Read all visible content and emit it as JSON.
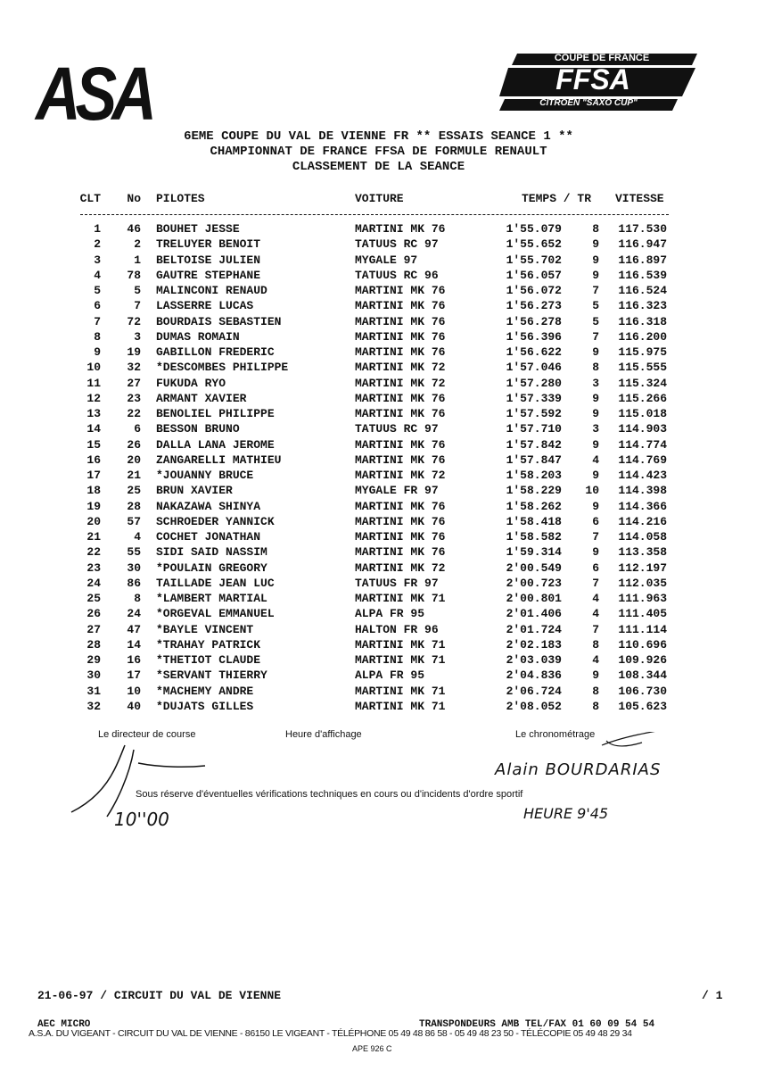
{
  "logos": {
    "asa": "ASA",
    "coupe": "COUPE DE FRANCE",
    "ffsa": "FFSA",
    "saxo": "CITROËN \"SAXO CUP\""
  },
  "header": {
    "lines": [
      "6EME COUPE DU VAL DE VIENNE FR ** ESSAIS SEANCE 1 **",
      "CHAMPIONNAT DE FRANCE FFSA DE FORMULE RENAULT",
      "CLASSEMENT DE LA SEANCE"
    ]
  },
  "table": {
    "columns": [
      "CLT",
      "No",
      "PILOTES",
      "VOITURE",
      "TEMPS / TR",
      "VITESSE"
    ],
    "rows": [
      [
        "1",
        "46",
        "BOUHET JESSE",
        "MARTINI MK 76",
        "1'55.079",
        "8",
        "117.530"
      ],
      [
        "2",
        "2",
        "TRELUYER BENOIT",
        "TATUUS RC 97",
        "1'55.652",
        "9",
        "116.947"
      ],
      [
        "3",
        "1",
        "BELTOISE JULIEN",
        "MYGALE 97",
        "1'55.702",
        "9",
        "116.897"
      ],
      [
        "4",
        "78",
        "GAUTRE STEPHANE",
        "TATUUS RC 96",
        "1'56.057",
        "9",
        "116.539"
      ],
      [
        "5",
        "5",
        "MALINCONI RENAUD",
        "MARTINI MK 76",
        "1'56.072",
        "7",
        "116.524"
      ],
      [
        "6",
        "7",
        "LASSERRE LUCAS",
        "MARTINI MK 76",
        "1'56.273",
        "5",
        "116.323"
      ],
      [
        "7",
        "72",
        "BOURDAIS SEBASTIEN",
        "MARTINI MK 76",
        "1'56.278",
        "5",
        "116.318"
      ],
      [
        "8",
        "3",
        "DUMAS ROMAIN",
        "MARTINI MK 76",
        "1'56.396",
        "7",
        "116.200"
      ],
      [
        "9",
        "19",
        "GABILLON FREDERIC",
        "MARTINI MK 76",
        "1'56.622",
        "9",
        "115.975"
      ],
      [
        "10",
        "32",
        "*DESCOMBES PHILIPPE",
        "MARTINI MK 72",
        "1'57.046",
        "8",
        "115.555"
      ],
      [
        "11",
        "27",
        "FUKUDA RYO",
        "MARTINI MK 72",
        "1'57.280",
        "3",
        "115.324"
      ],
      [
        "12",
        "23",
        "ARMANT XAVIER",
        "MARTINI MK 76",
        "1'57.339",
        "9",
        "115.266"
      ],
      [
        "13",
        "22",
        "BENOLIEL PHILIPPE",
        "MARTINI MK 76",
        "1'57.592",
        "9",
        "115.018"
      ],
      [
        "14",
        "6",
        "BESSON BRUNO",
        "TATUUS RC 97",
        "1'57.710",
        "3",
        "114.903"
      ],
      [
        "15",
        "26",
        "DALLA LANA JEROME",
        "MARTINI MK 76",
        "1'57.842",
        "9",
        "114.774"
      ],
      [
        "16",
        "20",
        "ZANGARELLI MATHIEU",
        "MARTINI MK 76",
        "1'57.847",
        "4",
        "114.769"
      ],
      [
        "17",
        "21",
        "*JOUANNY BRUCE",
        "MARTINI MK 72",
        "1'58.203",
        "9",
        "114.423"
      ],
      [
        "18",
        "25",
        "BRUN XAVIER",
        "MYGALE FR 97",
        "1'58.229",
        "10",
        "114.398"
      ],
      [
        "19",
        "28",
        "NAKAZAWA SHINYA",
        "MARTINI MK 76",
        "1'58.262",
        "9",
        "114.366"
      ],
      [
        "20",
        "57",
        "SCHROEDER YANNICK",
        "MARTINI MK 76",
        "1'58.418",
        "6",
        "114.216"
      ],
      [
        "21",
        "4",
        "COCHET JONATHAN",
        "MARTINI MK 76",
        "1'58.582",
        "7",
        "114.058"
      ],
      [
        "22",
        "55",
        "SIDI SAID NASSIM",
        "MARTINI MK 76",
        "1'59.314",
        "9",
        "113.358"
      ],
      [
        "23",
        "30",
        "*POULAIN GREGORY",
        "MARTINI MK 72",
        "2'00.549",
        "6",
        "112.197"
      ],
      [
        "24",
        "86",
        "TAILLADE JEAN LUC",
        "TATUUS FR 97",
        "2'00.723",
        "7",
        "112.035"
      ],
      [
        "25",
        "8",
        "*LAMBERT MARTIAL",
        "MARTINI MK 71",
        "2'00.801",
        "4",
        "111.963"
      ],
      [
        "26",
        "24",
        "*ORGEVAL EMMANUEL",
        "ALPA FR 95",
        "2'01.406",
        "4",
        "111.405"
      ],
      [
        "27",
        "47",
        "*BAYLE VINCENT",
        "HALTON FR 96",
        "2'01.724",
        "7",
        "111.114"
      ],
      [
        "28",
        "14",
        "*TRAHAY PATRICK",
        "MARTINI MK 71",
        "2'02.183",
        "8",
        "110.696"
      ],
      [
        "29",
        "16",
        "*THETIOT CLAUDE",
        "MARTINI MK 71",
        "2'03.039",
        "4",
        "109.926"
      ],
      [
        "30",
        "17",
        "*SERVANT THIERRY",
        "ALPA FR 95",
        "2'04.836",
        "9",
        "108.344"
      ],
      [
        "31",
        "10",
        "*MACHEMY ANDRE",
        "MARTINI MK 71",
        "2'06.724",
        "8",
        "106.730"
      ],
      [
        "32",
        "40",
        "*DUJATS GILLES",
        "MARTINI MK 71",
        "2'08.052",
        "8",
        "105.623"
      ]
    ]
  },
  "signatures": {
    "director": "Le directeur de course",
    "posting": "Heure d'affichage",
    "timing": "Le chronométrage",
    "timekeeper": "Alain BOURDARIAS",
    "notice": "Sous réserve d'éventuelles vérifications techniques en cours ou d'incidents d'ordre sportif",
    "hour": "HEURE 9'45",
    "posted": "10''00"
  },
  "footer": {
    "event": "21-06-97 / CIRCUIT DU VAL DE VIENNE",
    "page": "/ 1",
    "micro": "AEC MICRO",
    "transponders": "TRANSPONDEURS AMB TEL/FAX 01 60 09 54 54",
    "address": "A.S.A. DU VIGEANT - CIRCUIT DU VAL DE VIENNE - 86150 LE VIGEANT - TÉLÉPHONE 05 49 48 86 58 - 05 49 48 23 50 - TÉLÉCOPIE 05 49 48 29 34",
    "ape": "APE 926 C"
  }
}
